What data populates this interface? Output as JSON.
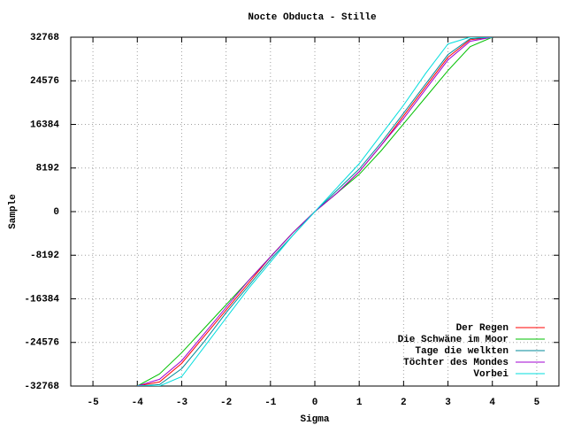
{
  "chart_data": {
    "type": "line",
    "title": "Nocte Obducta - Stille",
    "xlabel": "Sigma",
    "ylabel": "Sample",
    "x": [
      -4,
      -3.5,
      -3,
      -2.5,
      -2,
      -1.5,
      -1,
      -0.5,
      0,
      0.5,
      1,
      1.5,
      2,
      2.5,
      3,
      3.5,
      4
    ],
    "series": [
      {
        "name": "Der Regen",
        "color": "#ff0000",
        "values": [
          -32768,
          -32000,
          -28500,
          -23500,
          -18500,
          -13500,
          -8500,
          -4000,
          0,
          3500,
          7500,
          12500,
          18000,
          23500,
          29000,
          32300,
          32768
        ]
      },
      {
        "name": "Die Schwäne im Moor",
        "color": "#00c000",
        "values": [
          -32768,
          -30500,
          -26500,
          -22000,
          -17500,
          -13000,
          -8500,
          -4000,
          0,
          3500,
          7000,
          11500,
          16500,
          21500,
          26500,
          31000,
          32768
        ]
      },
      {
        "name": "Tage die welkten",
        "color": "#008a9a",
        "values": [
          -32768,
          -32500,
          -29500,
          -24500,
          -19000,
          -14000,
          -9000,
          -4500,
          0,
          4000,
          8000,
          13000,
          18500,
          24000,
          29500,
          32500,
          32768
        ]
      },
      {
        "name": "Töchter des Mondes",
        "color": "#a000d0",
        "values": [
          -32768,
          -31500,
          -28000,
          -23000,
          -18000,
          -13000,
          -8500,
          -4000,
          0,
          3500,
          7500,
          12500,
          17500,
          23000,
          28500,
          32000,
          32768
        ]
      },
      {
        "name": "Vorbei",
        "color": "#00dddd",
        "values": [
          -32768,
          -32768,
          -31000,
          -25500,
          -20000,
          -14500,
          -9500,
          -4500,
          0,
          4500,
          9000,
          14500,
          20000,
          26000,
          31500,
          32768,
          32768
        ]
      }
    ],
    "xlim": [
      -5.5,
      5.5
    ],
    "xticks": [
      -5,
      -4,
      -3,
      -2,
      -1,
      0,
      1,
      2,
      3,
      4,
      5
    ],
    "ylim": [
      -32768,
      32768
    ],
    "yticks": [
      -32768,
      -24576,
      -16384,
      -8192,
      0,
      8192,
      16384,
      24576,
      32768
    ],
    "grid": true,
    "legend": "bottom-right"
  }
}
